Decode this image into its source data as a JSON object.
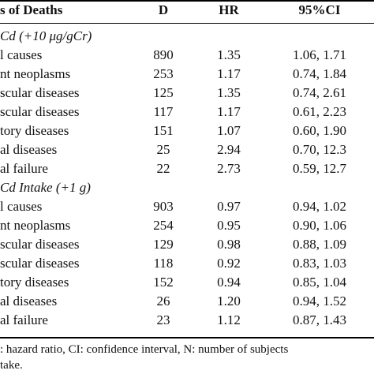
{
  "header": [
    "s of Deaths",
    "D",
    "HR",
    "95%CI"
  ],
  "sections": [
    {
      "title": "Cd (+10 μg/gCr)",
      "rows": [
        [
          "l causes",
          "890",
          "1.35",
          "1.06, 1.71"
        ],
        [
          "nt neoplasms",
          "253",
          "1.17",
          "0.74, 1.84"
        ],
        [
          "scular diseases",
          "125",
          "1.35",
          "0.74, 2.61"
        ],
        [
          "scular diseases",
          "117",
          "1.17",
          "0.61, 2.23"
        ],
        [
          "tory diseases",
          "151",
          "1.07",
          "0.60, 1.90"
        ],
        [
          "al diseases",
          "25",
          "2.94",
          "0.70, 12.3"
        ],
        [
          "al failure",
          "22",
          "2.73",
          "0.59, 12.7"
        ]
      ]
    },
    {
      "title": "Cd Intake (+1 g)",
      "rows": [
        [
          "l causes",
          "903",
          "0.97",
          "0.94, 1.02"
        ],
        [
          "nt neoplasms",
          "254",
          "0.95",
          "0.90, 1.06"
        ],
        [
          "scular diseases",
          "129",
          "0.98",
          "0.88, 1.09"
        ],
        [
          "scular diseases",
          "118",
          "0.92",
          "0.83, 1.03"
        ],
        [
          "tory diseases",
          "152",
          "0.94",
          "0.85, 1.04"
        ],
        [
          "al diseases",
          "26",
          "1.20",
          "0.94, 1.52"
        ],
        [
          "al failure",
          "23",
          "1.12",
          "0.87, 1.43"
        ]
      ]
    }
  ],
  "footnote": [
    ": hazard ratio, CI: confidence interval, N: number of subjects",
    "take."
  ]
}
